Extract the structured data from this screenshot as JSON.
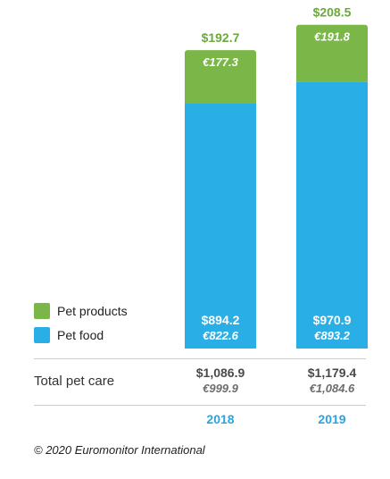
{
  "chart_data": {
    "type": "bar",
    "stacked": true,
    "categories": [
      "2018",
      "2019"
    ],
    "series": [
      {
        "name": "Pet food",
        "color": "#2aaee6",
        "values": [
          894.2,
          970.9
        ],
        "usd_labels": [
          "$894.2",
          "$970.9"
        ],
        "eur_labels": [
          "€822.6",
          "€893.2"
        ]
      },
      {
        "name": "Pet products",
        "color": "#7ab648",
        "values": [
          192.7,
          208.5
        ],
        "usd_labels": [
          "$192.7",
          "$208.5"
        ],
        "eur_labels": [
          "€177.3",
          "€191.8"
        ]
      }
    ],
    "legend_position": "left",
    "grid": false,
    "totals": {
      "label": "Total pet care",
      "usd": [
        "$1,086.9",
        "$1,179.4"
      ],
      "eur": [
        "€999.9",
        "€1,084.6"
      ]
    }
  },
  "footer": {
    "copyright": "© 2020 Euromonitor International"
  },
  "colors": {
    "year_label": "#2aa4e0",
    "products_label": "#6aaa3a"
  }
}
